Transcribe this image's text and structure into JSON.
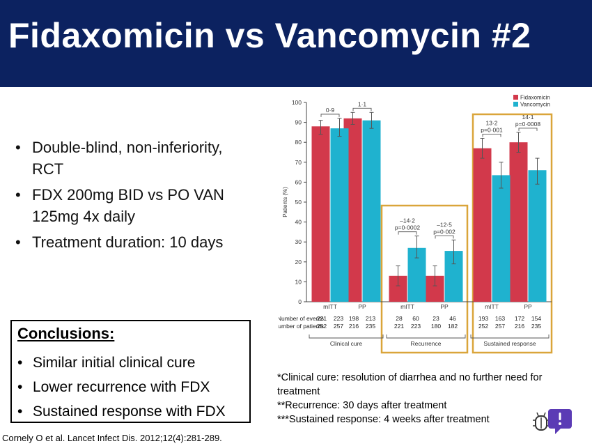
{
  "title": "Fidaxomicin vs Vancomycin #2",
  "bullets": [
    "Double-blind, non-inferiority, RCT",
    "FDX 200mg BID vs PO VAN 125mg 4x daily",
    "Treatment duration: 10 days"
  ],
  "conclusions": {
    "title": "Conclusions:",
    "items": [
      "Similar initial clinical cure",
      "Lower recurrence with FDX",
      "Sustained response with FDX"
    ]
  },
  "notes": [
    "*Clinical cure: resolution of diarrhea and no further need for treatment",
    "**Recurrence: 30 days after treatment",
    "***Sustained response: 4 weeks after treatment"
  ],
  "citation": "Cornely O et al. Lancet Infect Dis. 2012;12(4):281-289.",
  "colors": {
    "title_bg": "#0c2260",
    "fidaxomicin": "#d2394b",
    "vancomycin": "#1fb2cf",
    "highlight": "#daa53a"
  },
  "icons": {
    "feedback": "feedback-bubble-icon",
    "bug": "bug-icon"
  },
  "chart_data": {
    "type": "bar",
    "ylabel": "Patients (%)",
    "ylim": [
      0,
      100
    ],
    "yticks": [
      0,
      10,
      20,
      30,
      40,
      50,
      60,
      70,
      80,
      90,
      100
    ],
    "grid": false,
    "legend_position": "top-right",
    "categories": [
      "mITT",
      "PP",
      "mITT",
      "PP",
      "mITT",
      "PP"
    ],
    "groups": [
      {
        "label": "Clinical cure",
        "categories": [
          0,
          1
        ],
        "highlighted": false
      },
      {
        "label": "Recurrence",
        "categories": [
          2,
          3
        ],
        "highlighted": true
      },
      {
        "label": "Sustained response",
        "categories": [
          4,
          5
        ],
        "highlighted": true
      }
    ],
    "series": [
      {
        "name": "Fidaxomicin",
        "color": "#d2394b",
        "values": [
          88,
          92,
          13,
          13,
          77,
          80
        ],
        "ci": [
          [
            84,
            91
          ],
          [
            89,
            95
          ],
          [
            8,
            18
          ],
          [
            8,
            18
          ],
          [
            72,
            82
          ],
          [
            75,
            85
          ]
        ],
        "events": [
          "221",
          "198",
          "28",
          "23",
          "193",
          "172"
        ],
        "patients": [
          "252",
          "216",
          "221",
          "180",
          "252",
          "216"
        ]
      },
      {
        "name": "Vancomycin",
        "color": "#1fb2cf",
        "values": [
          87,
          91,
          27,
          25.5,
          63.5,
          66
        ],
        "ci": [
          [
            83,
            92
          ],
          [
            87,
            95
          ],
          [
            22,
            33
          ],
          [
            19,
            31
          ],
          [
            57,
            70
          ],
          [
            59,
            72
          ]
        ],
        "events": [
          "223",
          "213",
          "60",
          "46",
          "163",
          "154"
        ],
        "patients": [
          "257",
          "235",
          "223",
          "182",
          "257",
          "235"
        ]
      }
    ],
    "row_labels": [
      "Number of events",
      "Number of patients"
    ],
    "annotations": [
      {
        "category": 0,
        "lines": [
          "0·9"
        ]
      },
      {
        "category": 1,
        "lines": [
          "1·1"
        ]
      },
      {
        "category": 2,
        "lines": [
          "–14·2",
          "p=0·0002"
        ]
      },
      {
        "category": 3,
        "lines": [
          "–12·5",
          "p=0·002"
        ]
      },
      {
        "category": 4,
        "lines": [
          "13·2",
          "p=0·001"
        ]
      },
      {
        "category": 5,
        "lines": [
          "14·1",
          "p=0·0008"
        ]
      }
    ]
  }
}
